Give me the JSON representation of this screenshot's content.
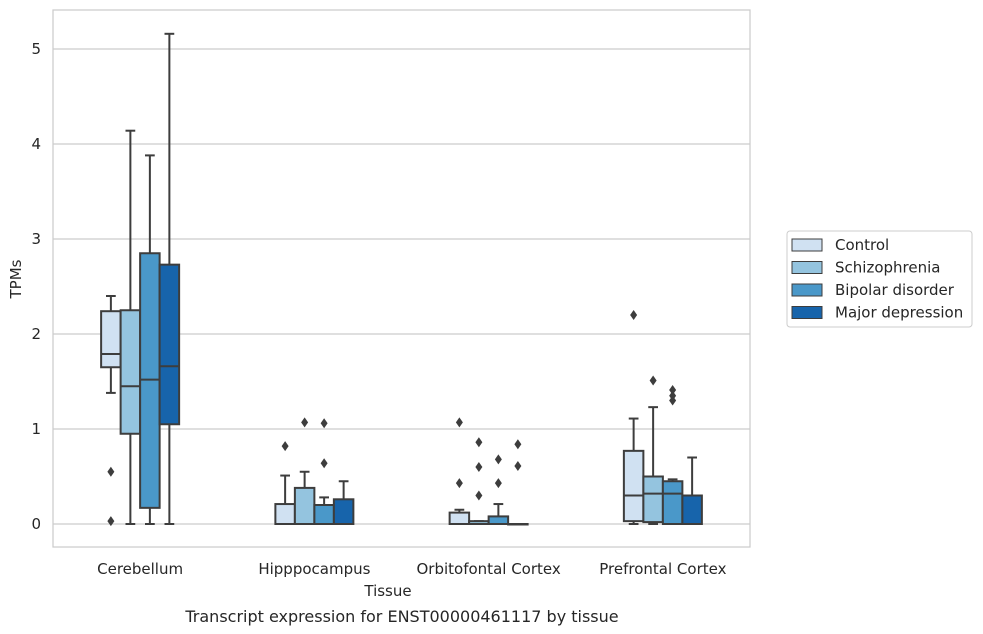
{
  "chart_data": {
    "type": "box",
    "xlabel": "Tissue",
    "ylabel": "TPMs",
    "caption": "Transcript expression for ENST00000461117 by tissue",
    "ylim": [
      -0.25,
      5.42
    ],
    "yticks": [
      0,
      1,
      2,
      3,
      4,
      5
    ],
    "grid": "horizontal",
    "legend_position": "right",
    "categories": [
      "Cerebellum",
      "Hipppocampus",
      "Orbitofontal Cortex",
      "Prefrontal Cortex"
    ],
    "series": [
      {
        "name": "Control",
        "color": "#d0e1f2",
        "boxes": [
          {
            "q1": 1.65,
            "median": 1.79,
            "q3": 2.24,
            "whislo": 1.38,
            "whishi": 2.4,
            "fliers": [
              0.55,
              0.03
            ]
          },
          {
            "q1": 0.0,
            "median": 0.0,
            "q3": 0.21,
            "whislo": 0.0,
            "whishi": 0.51,
            "fliers": [
              0.82
            ]
          },
          {
            "q1": 0.0,
            "median": 0.0,
            "q3": 0.12,
            "whislo": 0.0,
            "whishi": 0.15,
            "fliers": [
              0.43,
              1.07
            ]
          },
          {
            "q1": 0.03,
            "median": 0.3,
            "q3": 0.77,
            "whislo": 0.0,
            "whishi": 1.11,
            "fliers": [
              2.2
            ]
          }
        ]
      },
      {
        "name": "Schizophrenia",
        "color": "#94c4df",
        "boxes": [
          {
            "q1": 0.95,
            "median": 1.45,
            "q3": 2.25,
            "whislo": 0.0,
            "whishi": 4.14,
            "fliers": []
          },
          {
            "q1": 0.0,
            "median": 0.0,
            "q3": 0.38,
            "whislo": 0.0,
            "whishi": 0.55,
            "fliers": [
              1.07
            ]
          },
          {
            "q1": 0.0,
            "median": 0.0,
            "q3": 0.03,
            "whislo": 0.0,
            "whishi": 0.03,
            "fliers": [
              0.3,
              0.6,
              0.86
            ]
          },
          {
            "q1": 0.02,
            "median": 0.32,
            "q3": 0.5,
            "whislo": 0.0,
            "whishi": 1.23,
            "fliers": [
              1.51
            ]
          }
        ]
      },
      {
        "name": "Bipolar disorder",
        "color": "#4a98c9",
        "boxes": [
          {
            "q1": 0.17,
            "median": 1.52,
            "q3": 2.85,
            "whislo": 0.0,
            "whishi": 3.88,
            "fliers": []
          },
          {
            "q1": 0.0,
            "median": 0.0,
            "q3": 0.2,
            "whislo": 0.0,
            "whishi": 0.28,
            "fliers": [
              0.64,
              1.06
            ]
          },
          {
            "q1": 0.0,
            "median": 0.0,
            "q3": 0.08,
            "whislo": 0.0,
            "whishi": 0.21,
            "fliers": [
              0.43,
              0.68
            ]
          },
          {
            "q1": 0.0,
            "median": 0.32,
            "q3": 0.45,
            "whislo": 0.0,
            "whishi": 0.47,
            "fliers": [
              1.3,
              1.35,
              1.41
            ]
          }
        ]
      },
      {
        "name": "Major depression",
        "color": "#1764ab",
        "boxes": [
          {
            "q1": 1.05,
            "median": 1.66,
            "q3": 2.73,
            "whislo": 0.0,
            "whishi": 5.16,
            "fliers": []
          },
          {
            "q1": 0.0,
            "median": 0.0,
            "q3": 0.26,
            "whislo": 0.0,
            "whishi": 0.45,
            "fliers": []
          },
          {
            "q1": 0.0,
            "median": 0.0,
            "q3": 0.0,
            "whislo": 0.0,
            "whishi": 0.0,
            "fliers": [
              0.61,
              0.84
            ]
          },
          {
            "q1": 0.0,
            "median": 0.0,
            "q3": 0.3,
            "whislo": 0.0,
            "whishi": 0.7,
            "fliers": []
          }
        ]
      }
    ]
  }
}
